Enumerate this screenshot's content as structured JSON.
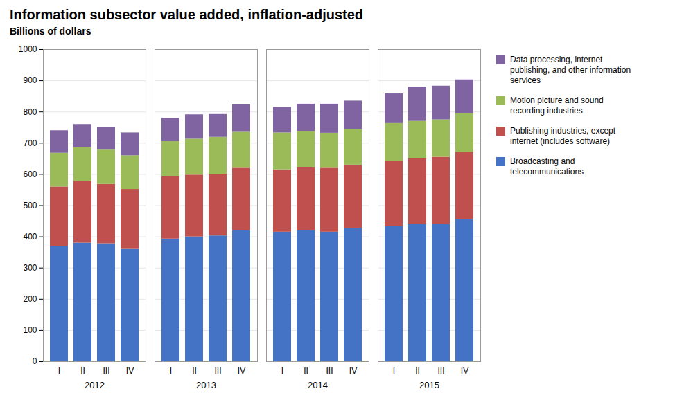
{
  "chart_data": {
    "type": "bar",
    "stacked": true,
    "title": "Information subsector value added, inflation-adjusted",
    "subtitle": "Billions of dollars",
    "categories": [
      "I",
      "II",
      "III",
      "IV",
      "I",
      "II",
      "III",
      "IV",
      "I",
      "II",
      "III",
      "IV",
      "I",
      "II",
      "III",
      "IV"
    ],
    "groups": [
      "2012",
      "2013",
      "2014",
      "2015"
    ],
    "series": [
      {
        "name": "Broadcasting and\ntelecommunications",
        "color": "#4472C4",
        "values": [
          370,
          380,
          378,
          360,
          393,
          400,
          403,
          420,
          415,
          420,
          415,
          428,
          433,
          440,
          440,
          455
        ]
      },
      {
        "name": "Publishing industries, except\ninternet (includes software)",
        "color": "#C0504D",
        "values": [
          190,
          198,
          190,
          192,
          200,
          198,
          196,
          200,
          200,
          202,
          205,
          202,
          210,
          210,
          215,
          215
        ]
      },
      {
        "name": "Motion picture and sound\nrecording industries",
        "color": "#9BBB59",
        "values": [
          108,
          108,
          110,
          108,
          112,
          115,
          120,
          115,
          118,
          115,
          112,
          115,
          120,
          120,
          120,
          125
        ]
      },
      {
        "name": "Data processing, internet\npublishing, and other information\nservices",
        "color": "#8064A2",
        "values": [
          72,
          74,
          72,
          73,
          75,
          78,
          73,
          88,
          82,
          88,
          93,
          90,
          95,
          110,
          108,
          108
        ]
      }
    ],
    "ylim": [
      0,
      1000
    ],
    "yticks": [
      0,
      100,
      200,
      300,
      400,
      500,
      600,
      700,
      800,
      900,
      1000
    ],
    "grid": true,
    "legend": "right"
  }
}
